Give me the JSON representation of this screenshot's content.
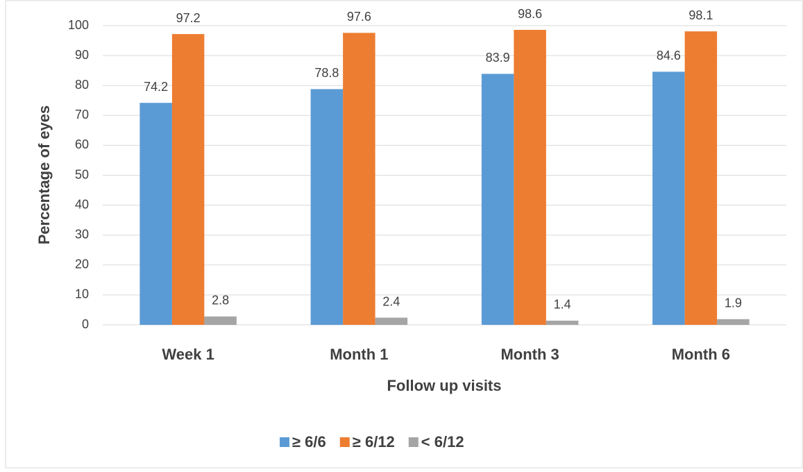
{
  "chart_data": {
    "type": "bar",
    "x_label": "Follow up visits",
    "y_label": "Percentage of eyes",
    "categories": [
      "Week 1",
      "Month 1",
      "Month 3",
      "Month 6"
    ],
    "series": [
      {
        "name": "≥ 6/6",
        "color": "#5b9bd5",
        "values": [
          74.2,
          78.8,
          83.9,
          84.6
        ]
      },
      {
        "name": "≥ 6/12",
        "color": "#ed7d31",
        "values": [
          97.2,
          97.6,
          98.6,
          98.1
        ]
      },
      {
        "name": "< 6/12",
        "color": "#a5a5a5",
        "values": [
          2.8,
          2.4,
          1.4,
          1.9
        ]
      }
    ],
    "ylim": [
      0,
      100
    ],
    "yticks": [
      0,
      10,
      20,
      30,
      40,
      50,
      60,
      70,
      80,
      90,
      100
    ],
    "grid": true,
    "legend": "bottom"
  }
}
